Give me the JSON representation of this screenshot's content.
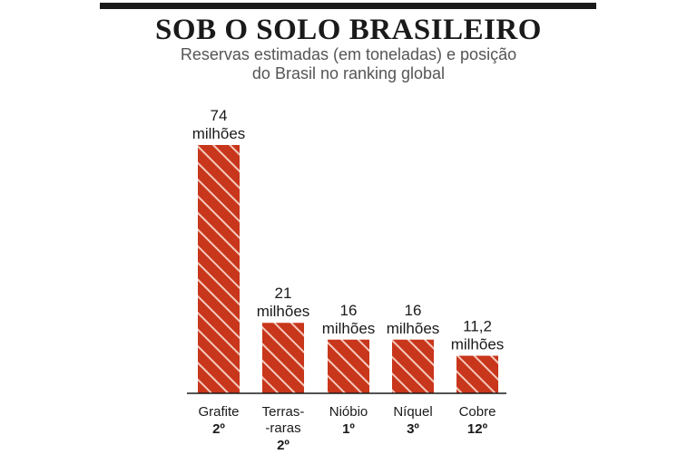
{
  "colors": {
    "bar_fill": "#c8361b",
    "bar_stripe": "#f4c9bd",
    "axis": "#1a1a1a",
    "title": "#1a1a1a",
    "subtitle": "#555555"
  },
  "chart_data": {
    "type": "bar",
    "title": "SOB O SOLO BRASILEIRO",
    "subtitle": [
      "Reservas estimadas (em toneladas) e posição",
      "do Brasil no ranking global"
    ],
    "xlabel": "",
    "ylabel": "",
    "unit": "toneladas",
    "grid": false,
    "legend": "none",
    "categories": [
      [
        "Grafite"
      ],
      [
        "Terras-",
        "-raras"
      ],
      [
        "Nióbio"
      ],
      [
        "Níquel"
      ],
      [
        "Cobre"
      ]
    ],
    "values": [
      74,
      21,
      16,
      16,
      11.2
    ],
    "value_labels": [
      [
        "74",
        "milhões"
      ],
      [
        "21",
        "milhões"
      ],
      [
        "16",
        "milhões"
      ],
      [
        "16",
        "milhões"
      ],
      [
        "11,2",
        "milhões"
      ]
    ],
    "ranks": [
      "2º",
      "2º",
      "1º",
      "3º",
      "12º"
    ],
    "ylim": [
      0,
      74
    ]
  }
}
